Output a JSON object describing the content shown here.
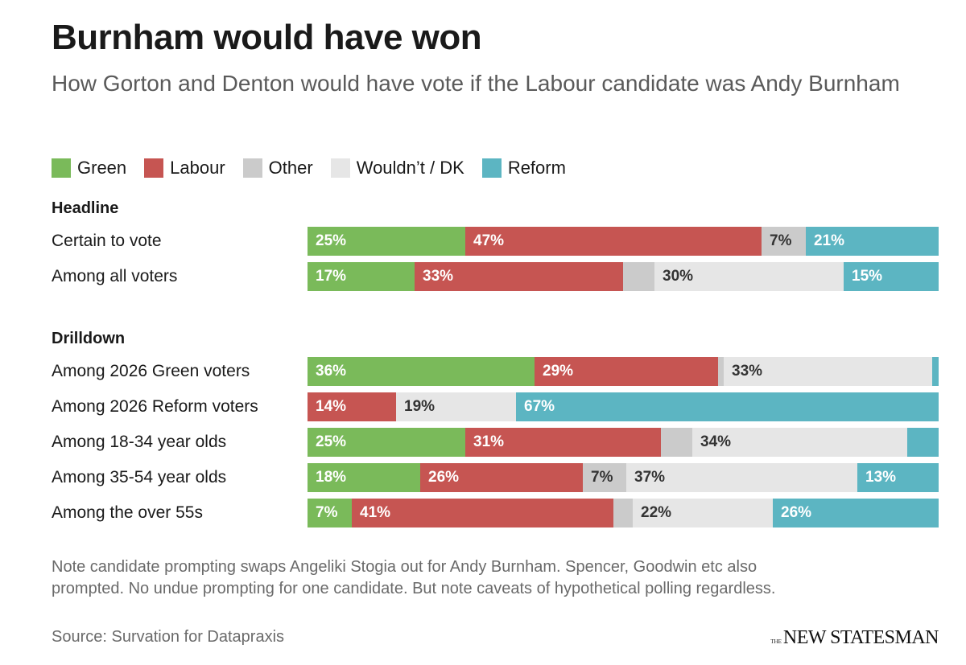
{
  "title": "Burnham would have won",
  "subtitle": "How Gorton and Denton would have vote if the Labour candidate was Andy Burnham",
  "colors": {
    "Green": "#7aba5a",
    "Labour": "#c65552",
    "Other": "#cbcbcb",
    "Wouldn't / DK": "#e6e6e6",
    "Reform": "#5cb5c2"
  },
  "legend": [
    "Green",
    "Labour",
    "Other",
    "Wouldn’t / DK",
    "Reform"
  ],
  "sections": {
    "headline": "Headline",
    "drilldown": "Drilldown"
  },
  "chart_data": {
    "type": "bar",
    "orientation": "horizontal",
    "stacked": true,
    "xlim": [
      0,
      100
    ],
    "title": "Burnham would have won",
    "series_names": [
      "Green",
      "Labour",
      "Other",
      "Wouldn’t / DK",
      "Reform"
    ],
    "rows": [
      {
        "section": "Headline",
        "label": "Certain to vote",
        "values": [
          25,
          47,
          7,
          0,
          21
        ],
        "labels": [
          "25%",
          "47%",
          "7%",
          "",
          "21%"
        ]
      },
      {
        "section": "Headline",
        "label": "Among all voters",
        "values": [
          17,
          33,
          5,
          30,
          15
        ],
        "labels": [
          "17%",
          "33%",
          "",
          "30%",
          "15%"
        ]
      },
      {
        "section": "Drilldown",
        "label": "Among 2026 Green voters",
        "values": [
          36,
          29,
          1,
          33,
          1
        ],
        "labels": [
          "36%",
          "29%",
          "",
          "33%",
          ""
        ]
      },
      {
        "section": "Drilldown",
        "label": "Among 2026 Reform voters",
        "values": [
          0,
          14,
          0,
          19,
          67
        ],
        "labels": [
          "",
          "14%",
          "",
          "19%",
          "67%"
        ]
      },
      {
        "section": "Drilldown",
        "label": "Among 18-34 year olds",
        "values": [
          25,
          31,
          5,
          34,
          5
        ],
        "labels": [
          "25%",
          "31%",
          "",
          "34%",
          ""
        ]
      },
      {
        "section": "Drilldown",
        "label": "Among 35-54 year olds",
        "values": [
          18,
          26,
          7,
          37,
          13
        ],
        "labels": [
          "18%",
          "26%",
          "7%",
          "37%",
          "13%"
        ]
      },
      {
        "section": "Drilldown",
        "label": "Among the over 55s",
        "values": [
          7,
          41,
          3,
          22,
          26
        ],
        "labels": [
          "7%",
          "41%",
          "",
          "22%",
          "26%"
        ]
      }
    ]
  },
  "note": "Note candidate prompting swaps Angeliki Stogia out for Andy Burnham. Spencer, Goodwin etc also prompted. No undue prompting for one candidate. But note caveats of hypothetical polling regardless.",
  "source": "Source: Survation for Datapraxis",
  "logo": {
    "small": "THE",
    "main": "NEW STATESMAN"
  }
}
